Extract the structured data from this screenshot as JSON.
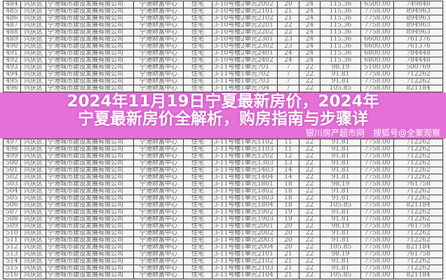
{
  "table": {
    "district": "兴庆区",
    "developer": "宁港城市建设发展有限公司",
    "project": "宁港财富中心",
    "usage": "住宅",
    "rows": [
      [
        "484",
        "3-10号楼2单元2002",
        "20",
        "24",
        "115.36",
        "6500.00",
        "749840"
      ],
      [
        "485",
        "3-10号楼2单元2101",
        "21",
        "24",
        "115.36",
        "7758.00",
        "894963"
      ],
      [
        "486",
        "3-10号楼2单元2102",
        "21",
        "24",
        "115.36",
        "7758.00",
        "894963"
      ],
      [
        "487",
        "3-10号楼2单元2201",
        "22",
        "24",
        "115.36",
        "7758.00",
        "894963"
      ],
      [
        "488",
        "3-10号楼2单元2202",
        "22",
        "24",
        "115.36",
        "7758.00",
        "894963"
      ],
      [
        "489",
        "3-10号楼2单元2301",
        "23",
        "24",
        "115.36",
        "6600.00",
        "761376"
      ],
      [
        "490",
        "3-10号楼2单元2302",
        "23",
        "24",
        "115.36",
        "6600.00",
        "761376"
      ],
      [
        "491",
        "3-10号楼2单元2401",
        "24",
        "24",
        "115.36",
        "6800.00",
        "784448"
      ],
      [
        "492",
        "3-10号楼2单元2402",
        "24",
        "24",
        "115.36",
        "6800.00",
        "784448"
      ],
      [
        "493",
        "3-11号楼1单元701",
        "7",
        "22",
        "98.19",
        "5100.00",
        "500769"
      ],
      [
        "494",
        "3-11号楼1单元702",
        "7",
        "22",
        "91.81",
        "7758.00",
        "712262"
      ],
      [
        "495",
        "3-11号楼1单元703",
        "7",
        "22",
        "91.81",
        "7758.00",
        "712262"
      ],
      [
        "496",
        "3-11号楼1单元704",
        "7",
        "22",
        "105.85",
        "7758.00",
        "821184"
      ],
      [
        "497",
        "3-11号楼1单元1102",
        "11",
        "22",
        "91.81",
        "7758.00",
        "712262"
      ],
      [
        "498",
        "3-11号楼1单元1103",
        "11",
        "22",
        "91.81",
        "7758.00",
        "712262"
      ],
      [
        "499",
        "3-11号楼1单元1202",
        "12",
        "22",
        "91.81",
        "7758.00",
        "712262"
      ],
      [
        "500",
        "3-11号楼1单元1303",
        "13",
        "22",
        "91.81",
        "7758.00",
        "712262"
      ],
      [
        "501",
        "3-11号楼1单元1403",
        "14",
        "22",
        "91.81",
        "7758.00",
        "712262"
      ],
      [
        "502",
        "3-11号楼1单元1404",
        "14",
        "22",
        "91.81",
        "7758.00",
        "712262"
      ],
      [
        "503",
        "3-11号楼1单元1801",
        "18",
        "22",
        "98.19",
        "7758.00",
        "761758"
      ],
      [
        "504",
        "3-11号楼1单元1802",
        "18",
        "22",
        "91.81",
        "7758.00",
        "712262"
      ],
      [
        "505",
        "3-11号楼1单元1803",
        "18",
        "22",
        "91.81",
        "7758.00",
        "712262"
      ],
      [
        "506",
        "3-11号楼1单元1804",
        "18",
        "22",
        "105.85",
        "7758.00",
        "821184"
      ],
      [
        "507",
        "3-11号楼1单元1902",
        "19",
        "22",
        "91.81",
        "7758.00",
        "712262"
      ],
      [
        "508",
        "3-11号楼1单元1903",
        "19",
        "22",
        "91.81",
        "7758.00",
        "712262"
      ],
      [
        "509",
        "3-11号楼1单元2001",
        "20",
        "22",
        "98.19",
        "7758.00",
        "761758"
      ],
      [
        "510",
        "3-11号楼1单元2002",
        "20",
        "22",
        "91.81",
        "7758.00",
        "712262"
      ],
      [
        "511",
        "3-11号楼1单元2003",
        "20",
        "22",
        "91.81",
        "7758.00",
        "712262"
      ],
      [
        "512",
        "3-11号楼1单元2004",
        "20",
        "22",
        "105.85",
        "7758.00",
        "821184"
      ],
      [
        "513",
        "3-11号楼1单元2101",
        "21",
        "22",
        "98.19",
        "7758.00",
        "761758"
      ],
      [
        "514",
        "3-11号楼1单元2102",
        "21",
        "22",
        "91.81",
        "7758.00",
        "712262"
      ],
      [
        "515",
        "3-11号楼1单元2103",
        "21",
        "22",
        "91.81",
        "7758.00",
        "712262"
      ],
      [
        "516",
        "3-11号楼1单元2104",
        "21",
        "22",
        "105.85",
        "7758.00",
        "821184"
      ]
    ]
  },
  "overlay": {
    "title_line1": "2024年11月19日宁夏最新房价，2024年",
    "title_line2": "宁夏最新房价全解析，购房指南与步骤详",
    "band_color": "#e058d4"
  },
  "watermark": {
    "line1": "银川房产超市网",
    "line2": "搜狐号@全案观察"
  }
}
